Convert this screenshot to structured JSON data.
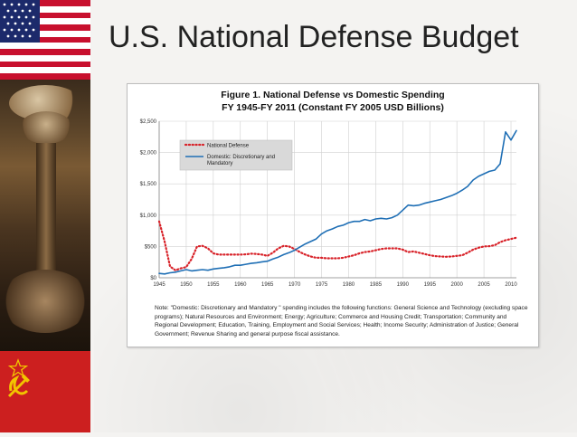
{
  "slide": {
    "title": "U.S. National Defense Budget"
  },
  "chart_data": {
    "type": "line",
    "title": "Figure 1.  National Defense vs Domestic Spending",
    "subtitle": "FY 1945-FY 2011 (Constant FY 2005 USD Billions)",
    "xlabel": "",
    "ylabel": "",
    "xlim": [
      1945,
      2011
    ],
    "ylim": [
      0,
      2500
    ],
    "x_ticks": [
      1945,
      1950,
      1955,
      1960,
      1965,
      1970,
      1975,
      1980,
      1985,
      1990,
      1995,
      2000,
      2005,
      2010
    ],
    "y_ticks": [
      0,
      500,
      1000,
      1500,
      2000,
      2500
    ],
    "y_tick_labels": [
      "$0",
      "$500",
      "$1,000",
      "$1,500",
      "$2,000",
      "$2,500"
    ],
    "grid": true,
    "legend_position": "top-left",
    "series": [
      {
        "name": "National Defense",
        "style": "dotted",
        "color": "#d8232a",
        "points": [
          [
            1945,
            900
          ],
          [
            1946,
            580
          ],
          [
            1947,
            180
          ],
          [
            1948,
            120
          ],
          [
            1949,
            150
          ],
          [
            1950,
            170
          ],
          [
            1951,
            300
          ],
          [
            1952,
            500
          ],
          [
            1953,
            510
          ],
          [
            1954,
            470
          ],
          [
            1955,
            390
          ],
          [
            1956,
            370
          ],
          [
            1957,
            370
          ],
          [
            1958,
            370
          ],
          [
            1959,
            370
          ],
          [
            1960,
            370
          ],
          [
            1961,
            375
          ],
          [
            1962,
            385
          ],
          [
            1963,
            380
          ],
          [
            1964,
            370
          ],
          [
            1965,
            350
          ],
          [
            1966,
            400
          ],
          [
            1967,
            470
          ],
          [
            1968,
            510
          ],
          [
            1969,
            500
          ],
          [
            1970,
            460
          ],
          [
            1971,
            410
          ],
          [
            1972,
            370
          ],
          [
            1973,
            340
          ],
          [
            1974,
            320
          ],
          [
            1975,
            320
          ],
          [
            1976,
            310
          ],
          [
            1977,
            310
          ],
          [
            1978,
            310
          ],
          [
            1979,
            320
          ],
          [
            1980,
            340
          ],
          [
            1981,
            360
          ],
          [
            1982,
            390
          ],
          [
            1983,
            410
          ],
          [
            1984,
            420
          ],
          [
            1985,
            440
          ],
          [
            1986,
            460
          ],
          [
            1987,
            470
          ],
          [
            1988,
            470
          ],
          [
            1989,
            470
          ],
          [
            1990,
            450
          ],
          [
            1991,
            410
          ],
          [
            1992,
            420
          ],
          [
            1993,
            400
          ],
          [
            1994,
            380
          ],
          [
            1995,
            360
          ],
          [
            1996,
            345
          ],
          [
            1997,
            340
          ],
          [
            1998,
            335
          ],
          [
            1999,
            340
          ],
          [
            2000,
            350
          ],
          [
            2001,
            360
          ],
          [
            2002,
            400
          ],
          [
            2003,
            450
          ],
          [
            2004,
            480
          ],
          [
            2005,
            500
          ],
          [
            2006,
            505
          ],
          [
            2007,
            520
          ],
          [
            2008,
            570
          ],
          [
            2009,
            600
          ],
          [
            2010,
            620
          ],
          [
            2011,
            640
          ]
        ]
      },
      {
        "name": "Domestic: Discretionary and Mandatory",
        "style": "solid",
        "color": "#1f6fb5",
        "points": [
          [
            1945,
            70
          ],
          [
            1946,
            60
          ],
          [
            1947,
            80
          ],
          [
            1948,
            90
          ],
          [
            1949,
            110
          ],
          [
            1950,
            130
          ],
          [
            1951,
            110
          ],
          [
            1952,
            120
          ],
          [
            1953,
            130
          ],
          [
            1954,
            120
          ],
          [
            1955,
            140
          ],
          [
            1956,
            150
          ],
          [
            1957,
            160
          ],
          [
            1958,
            175
          ],
          [
            1959,
            200
          ],
          [
            1960,
            200
          ],
          [
            1961,
            215
          ],
          [
            1962,
            230
          ],
          [
            1963,
            240
          ],
          [
            1964,
            255
          ],
          [
            1965,
            265
          ],
          [
            1966,
            300
          ],
          [
            1967,
            330
          ],
          [
            1968,
            370
          ],
          [
            1969,
            400
          ],
          [
            1970,
            440
          ],
          [
            1971,
            490
          ],
          [
            1972,
            540
          ],
          [
            1973,
            580
          ],
          [
            1974,
            620
          ],
          [
            1975,
            700
          ],
          [
            1976,
            750
          ],
          [
            1977,
            780
          ],
          [
            1978,
            820
          ],
          [
            1979,
            840
          ],
          [
            1980,
            880
          ],
          [
            1981,
            900
          ],
          [
            1982,
            900
          ],
          [
            1983,
            930
          ],
          [
            1984,
            910
          ],
          [
            1985,
            940
          ],
          [
            1986,
            950
          ],
          [
            1987,
            940
          ],
          [
            1988,
            960
          ],
          [
            1989,
            1000
          ],
          [
            1990,
            1080
          ],
          [
            1991,
            1160
          ],
          [
            1992,
            1150
          ],
          [
            1993,
            1160
          ],
          [
            1994,
            1190
          ],
          [
            1995,
            1210
          ],
          [
            1996,
            1230
          ],
          [
            1997,
            1250
          ],
          [
            1998,
            1280
          ],
          [
            1999,
            1310
          ],
          [
            2000,
            1350
          ],
          [
            2001,
            1400
          ],
          [
            2002,
            1460
          ],
          [
            2003,
            1560
          ],
          [
            2004,
            1620
          ],
          [
            2005,
            1660
          ],
          [
            2006,
            1700
          ],
          [
            2007,
            1720
          ],
          [
            2008,
            1820
          ],
          [
            2009,
            2330
          ],
          [
            2010,
            2200
          ],
          [
            2011,
            2350
          ]
        ]
      }
    ],
    "note": "Note:  \"Domestic: Discretionary and Mandatory \" spending includes the following functions:  General Science and Technology (excluding space programs); Natural Resources and Environment; Energy; Agriculture; Commerce and Housing Credit; Transportation; Community and Regional Development;  Education, Training, Employment and Social Services; Health; Income Security; Administration of Justice; General Government; Revenue Sharing and general purpose fiscal assistance."
  }
}
